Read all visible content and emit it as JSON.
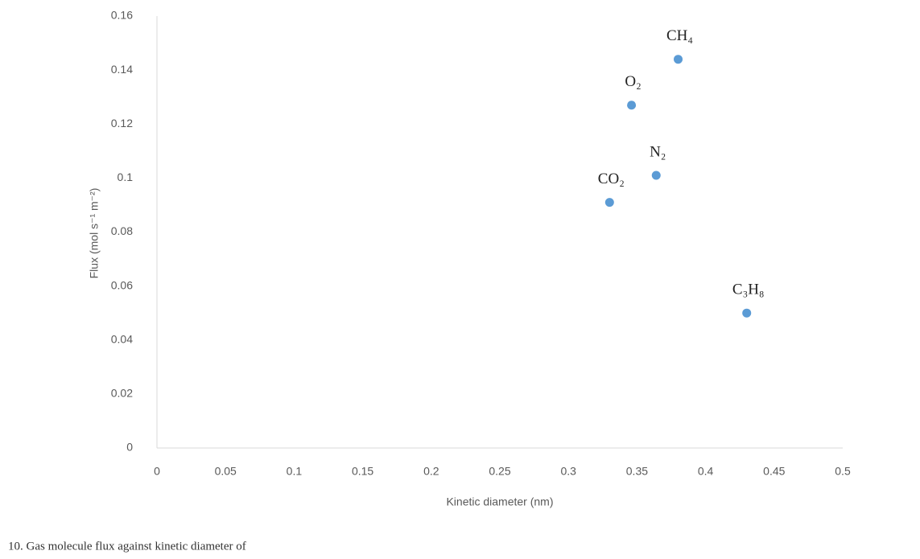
{
  "chart_data": {
    "type": "scatter",
    "x_label": "Kinetic diameter (nm)",
    "y_label": "Flux (mol s⁻¹ m⁻²)",
    "caption": "10. Gas molecule flux against kinetic diameter of",
    "x": [
      0.33,
      0.346,
      0.364,
      0.38,
      0.43
    ],
    "point_labels": [
      "CO₂",
      "O₂",
      "N₂",
      "CH₄",
      "C₃H₈"
    ],
    "series": [
      {
        "name": "Flux",
        "color": "#5b9bd5",
        "values": [
          0.091,
          0.127,
          0.101,
          0.144,
          0.05
        ]
      }
    ],
    "xlim": [
      0,
      0.5
    ],
    "xticks": [
      0,
      0.05,
      0.1,
      0.15,
      0.2,
      0.25,
      0.3,
      0.35,
      0.4,
      0.45,
      0.5
    ],
    "ylim": [
      0,
      0.16
    ],
    "yticks": [
      0,
      0.02,
      0.04,
      0.06,
      0.08,
      0.1,
      0.12,
      0.14,
      0.16
    ]
  }
}
